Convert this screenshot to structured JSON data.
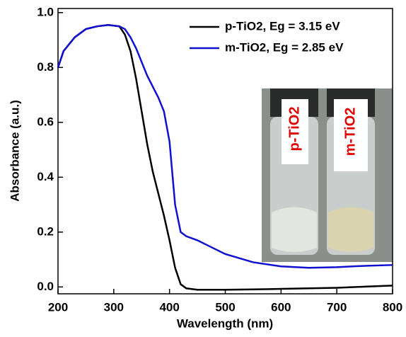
{
  "chart_data": {
    "type": "line",
    "x_label": "Wavelength (nm)",
    "y_label": "Absorbance (a.u.)",
    "x": [
      200,
      210,
      230,
      250,
      270,
      290,
      310,
      320,
      330,
      340,
      350,
      360,
      370,
      380,
      390,
      400,
      410,
      420,
      430,
      450,
      470,
      500,
      550,
      600,
      650,
      700,
      750,
      800
    ],
    "series": [
      {
        "name": "p-TiO2, Eg = 3.15 eV",
        "color": "#000000",
        "values": [
          0.8,
          0.86,
          0.91,
          0.94,
          0.95,
          0.955,
          0.95,
          0.92,
          0.86,
          0.76,
          0.64,
          0.52,
          0.42,
          0.34,
          0.26,
          0.17,
          0.07,
          0.01,
          -0.005,
          -0.01,
          -0.01,
          -0.01,
          -0.009,
          -0.007,
          -0.005,
          -0.003,
          0.001,
          0.005
        ]
      },
      {
        "name": "m-TiO2, Eg = 2.85 eV",
        "color": "#1010d0",
        "values": [
          0.8,
          0.86,
          0.91,
          0.94,
          0.95,
          0.955,
          0.95,
          0.94,
          0.91,
          0.87,
          0.82,
          0.77,
          0.73,
          0.69,
          0.64,
          0.53,
          0.3,
          0.2,
          0.185,
          0.17,
          0.15,
          0.12,
          0.09,
          0.075,
          0.07,
          0.072,
          0.077,
          0.08
        ]
      }
    ],
    "xlim": [
      200,
      800
    ],
    "xticks": [
      200,
      300,
      400,
      500,
      600,
      700,
      800
    ],
    "ylim": [
      -0.025,
      1.015
    ],
    "yticks": [
      {
        "value": 0,
        "label": "0.0"
      },
      0.2,
      0.4,
      0.6,
      0.8,
      {
        "value": 1,
        "label": "1.0"
      }
    ],
    "legend": "upper right",
    "inset_labels": [
      "p-TiO2",
      "m-TiO2"
    ]
  }
}
